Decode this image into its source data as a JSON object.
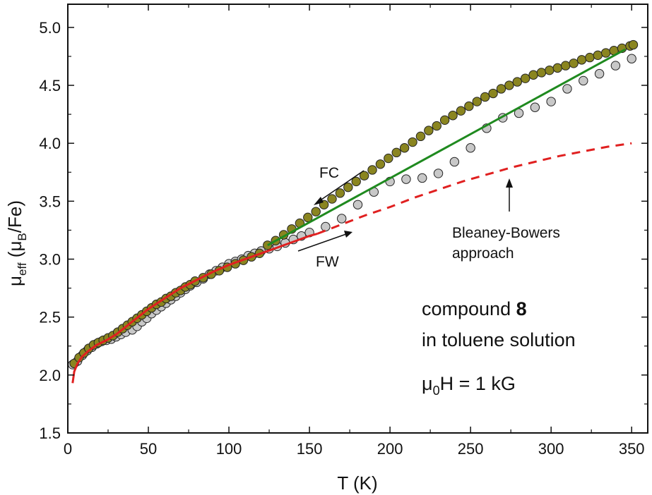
{
  "chart_data": {
    "type": "scatter",
    "xlabel": "T (K)",
    "ylabel_parts": {
      "mu": "μ",
      "eff": "eff",
      "paren_open": " (μ",
      "B": "B",
      "rest": "/Fe)"
    },
    "xlim": [
      0,
      360
    ],
    "ylim": [
      1.5,
      5.2
    ],
    "x_ticks": [
      0,
      50,
      100,
      150,
      200,
      250,
      300,
      350
    ],
    "x_tick_labels": [
      "0",
      "50",
      "100",
      "150",
      "200",
      "250",
      "300",
      "350"
    ],
    "y_ticks": [
      1.5,
      2.0,
      2.5,
      3.0,
      3.5,
      4.0,
      4.5,
      5.0
    ],
    "y_tick_labels": [
      "1.5",
      "2.0",
      "2.5",
      "3.0",
      "3.5",
      "4.0",
      "4.5",
      "5.0"
    ],
    "grid": false,
    "series": [
      {
        "name": "FW",
        "style": "marker",
        "color": "#c8c8c8",
        "points": [
          [
            3,
            2.09
          ],
          [
            6,
            2.12
          ],
          [
            9,
            2.17
          ],
          [
            12,
            2.21
          ],
          [
            15,
            2.24
          ],
          [
            18,
            2.27
          ],
          [
            21,
            2.29
          ],
          [
            24,
            2.3
          ],
          [
            27,
            2.31
          ],
          [
            30,
            2.33
          ],
          [
            33,
            2.35
          ],
          [
            36,
            2.37
          ],
          [
            40,
            2.39
          ],
          [
            43,
            2.42
          ],
          [
            46,
            2.46
          ],
          [
            49,
            2.49
          ],
          [
            52,
            2.53
          ],
          [
            55,
            2.56
          ],
          [
            58,
            2.59
          ],
          [
            61,
            2.62
          ],
          [
            64,
            2.65
          ],
          [
            67,
            2.68
          ],
          [
            70,
            2.71
          ],
          [
            73,
            2.74
          ],
          [
            76,
            2.77
          ],
          [
            80,
            2.8
          ],
          [
            84,
            2.83
          ],
          [
            88,
            2.87
          ],
          [
            92,
            2.9
          ],
          [
            96,
            2.93
          ],
          [
            100,
            2.96
          ],
          [
            104,
            2.98
          ],
          [
            108,
            3.0
          ],
          [
            112,
            3.03
          ],
          [
            116,
            3.05
          ],
          [
            120,
            3.07
          ],
          [
            125,
            3.09
          ],
          [
            130,
            3.11
          ],
          [
            135,
            3.14
          ],
          [
            140,
            3.17
          ],
          [
            145,
            3.2
          ],
          [
            150,
            3.23
          ],
          [
            160,
            3.28
          ],
          [
            170,
            3.35
          ],
          [
            180,
            3.47
          ],
          [
            190,
            3.58
          ],
          [
            200,
            3.67
          ],
          [
            210,
            3.69
          ],
          [
            220,
            3.7
          ],
          [
            230,
            3.74
          ],
          [
            240,
            3.84
          ],
          [
            250,
            3.96
          ],
          [
            260,
            4.13
          ],
          [
            270,
            4.22
          ],
          [
            280,
            4.26
          ],
          [
            290,
            4.31
          ],
          [
            300,
            4.36
          ],
          [
            310,
            4.47
          ],
          [
            320,
            4.54
          ],
          [
            330,
            4.6
          ],
          [
            340,
            4.67
          ],
          [
            350,
            4.73
          ]
        ]
      },
      {
        "name": "FC",
        "style": "marker",
        "color": "#8a8520",
        "points": [
          [
            4,
            2.1
          ],
          [
            7,
            2.15
          ],
          [
            10,
            2.19
          ],
          [
            13,
            2.23
          ],
          [
            16,
            2.26
          ],
          [
            19,
            2.28
          ],
          [
            22,
            2.3
          ],
          [
            25,
            2.32
          ],
          [
            28,
            2.34
          ],
          [
            31,
            2.37
          ],
          [
            34,
            2.4
          ],
          [
            37,
            2.43
          ],
          [
            40,
            2.46
          ],
          [
            43,
            2.49
          ],
          [
            46,
            2.52
          ],
          [
            49,
            2.55
          ],
          [
            52,
            2.58
          ],
          [
            55,
            2.61
          ],
          [
            58,
            2.63
          ],
          [
            61,
            2.66
          ],
          [
            64,
            2.68
          ],
          [
            67,
            2.71
          ],
          [
            70,
            2.73
          ],
          [
            73,
            2.76
          ],
          [
            76,
            2.78
          ],
          [
            79,
            2.81
          ],
          [
            84,
            2.84
          ],
          [
            89,
            2.87
          ],
          [
            94,
            2.9
          ],
          [
            99,
            2.93
          ],
          [
            104,
            2.96
          ],
          [
            109,
            2.99
          ],
          [
            114,
            3.02
          ],
          [
            119,
            3.05
          ],
          [
            124,
            3.12
          ],
          [
            129,
            3.16
          ],
          [
            134,
            3.21
          ],
          [
            139,
            3.26
          ],
          [
            144,
            3.31
          ],
          [
            149,
            3.36
          ],
          [
            154,
            3.41
          ],
          [
            159,
            3.47
          ],
          [
            164,
            3.52
          ],
          [
            169,
            3.57
          ],
          [
            174,
            3.62
          ],
          [
            179,
            3.67
          ],
          [
            184,
            3.72
          ],
          [
            189,
            3.77
          ],
          [
            194,
            3.82
          ],
          [
            199,
            3.87
          ],
          [
            204,
            3.92
          ],
          [
            209,
            3.96
          ],
          [
            214,
            4.01
          ],
          [
            219,
            4.06
          ],
          [
            224,
            4.11
          ],
          [
            229,
            4.15
          ],
          [
            234,
            4.2
          ],
          [
            239,
            4.24
          ],
          [
            244,
            4.28
          ],
          [
            249,
            4.32
          ],
          [
            254,
            4.36
          ],
          [
            259,
            4.4
          ],
          [
            264,
            4.43
          ],
          [
            269,
            4.47
          ],
          [
            274,
            4.5
          ],
          [
            279,
            4.53
          ],
          [
            284,
            4.56
          ],
          [
            289,
            4.59
          ],
          [
            294,
            4.61
          ],
          [
            299,
            4.63
          ],
          [
            304,
            4.65
          ],
          [
            309,
            4.67
          ],
          [
            314,
            4.69
          ],
          [
            319,
            4.72
          ],
          [
            324,
            4.74
          ],
          [
            329,
            4.76
          ],
          [
            334,
            4.78
          ],
          [
            339,
            4.8
          ],
          [
            344,
            4.82
          ],
          [
            349,
            4.84
          ],
          [
            351,
            4.85
          ]
        ]
      },
      {
        "name": "fit-green",
        "style": "line",
        "color": "#1f8a1f",
        "points": [
          [
            124,
            3.12
          ],
          [
            346,
            4.81
          ]
        ]
      },
      {
        "name": "fit-red",
        "style": "line",
        "color": "#e02020",
        "points": [
          [
            3,
            1.93
          ],
          [
            4,
            2.03
          ],
          [
            6,
            2.1
          ],
          [
            9,
            2.16
          ],
          [
            13,
            2.21
          ],
          [
            18,
            2.26
          ],
          [
            24,
            2.3
          ],
          [
            30,
            2.35
          ],
          [
            40,
            2.46
          ],
          [
            50,
            2.57
          ],
          [
            60,
            2.66
          ],
          [
            70,
            2.75
          ],
          [
            80,
            2.82
          ],
          [
            90,
            2.89
          ],
          [
            100,
            2.95
          ],
          [
            110,
            3.0
          ],
          [
            120,
            3.05
          ],
          [
            130,
            3.1
          ],
          [
            140,
            3.15
          ],
          [
            150,
            3.2
          ],
          [
            155,
            3.22
          ]
        ]
      },
      {
        "name": "fit-red-dashed",
        "style": "dashed",
        "color": "#e02020",
        "points": [
          [
            155,
            3.22
          ],
          [
            170,
            3.3
          ],
          [
            185,
            3.38
          ],
          [
            200,
            3.45
          ],
          [
            215,
            3.53
          ],
          [
            230,
            3.6
          ],
          [
            245,
            3.67
          ],
          [
            260,
            3.73
          ],
          [
            275,
            3.79
          ],
          [
            290,
            3.84
          ],
          [
            305,
            3.89
          ],
          [
            320,
            3.93
          ],
          [
            335,
            3.97
          ],
          [
            350,
            4.0
          ]
        ]
      }
    ],
    "annotations": {
      "fc_label": "FC",
      "fw_label": "FW",
      "bb_line1": "Bleaney-Bowers",
      "bb_line2": "approach",
      "compound_prefix": "compound ",
      "compound_number": "8",
      "solution": "in toluene solution",
      "field_mu": "μ",
      "field_sub": "0",
      "field_rest": "H = 1 kG"
    }
  }
}
